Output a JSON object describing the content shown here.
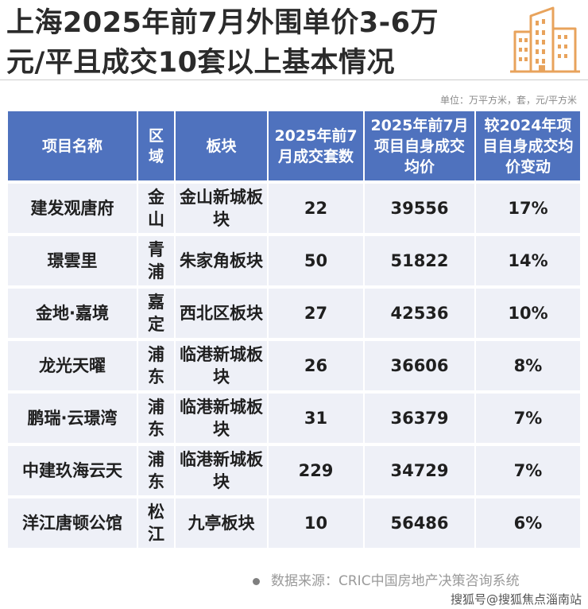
{
  "title": {
    "line1": "上海2025年前7月外围单价3-6万",
    "line2": "元/平且成交10套以上基本情况"
  },
  "logo_icon": "building-icon",
  "unit_note": "单位：万平方米，套，元/平方米",
  "table": {
    "headers": [
      "项目名称",
      "区域",
      "板块",
      "2025年前7月成交套数",
      "2025年前7月项目自身成交均价",
      "较2024年项目自身成交均价变动"
    ],
    "rows": [
      {
        "name": "建发观唐府",
        "district": "金山",
        "plate": "金山新城板块",
        "units": "22",
        "price": "39556",
        "change": "17%"
      },
      {
        "name": "璟雲里",
        "district": "青浦",
        "plate": "朱家角板块",
        "units": "50",
        "price": "51822",
        "change": "14%"
      },
      {
        "name": "金地·嘉境",
        "district": "嘉定",
        "plate": "西北区板块",
        "units": "27",
        "price": "42536",
        "change": "10%"
      },
      {
        "name": "龙光天曜",
        "district": "浦东",
        "plate": "临港新城板块",
        "units": "26",
        "price": "36606",
        "change": "8%"
      },
      {
        "name": "鹏瑞·云璟湾",
        "district": "浦东",
        "plate": "临港新城板块",
        "units": "31",
        "price": "36379",
        "change": "7%"
      },
      {
        "name": "中建玖海云天",
        "district": "浦东",
        "plate": "临港新城板块",
        "units": "229",
        "price": "34729",
        "change": "7%"
      },
      {
        "name": "洋江唐顿公馆",
        "district": "松江",
        "plate": "九亭板块",
        "units": "10",
        "price": "56486",
        "change": "6%"
      }
    ]
  },
  "source": "数据来源：CRIC中国房地产决策咨询系统",
  "watermark": "搜狐号@搜狐焦点淄南站",
  "colors": {
    "header_bg": "#4f72be",
    "row_bg": "#eef0f7",
    "logo": "#e8a35c"
  }
}
